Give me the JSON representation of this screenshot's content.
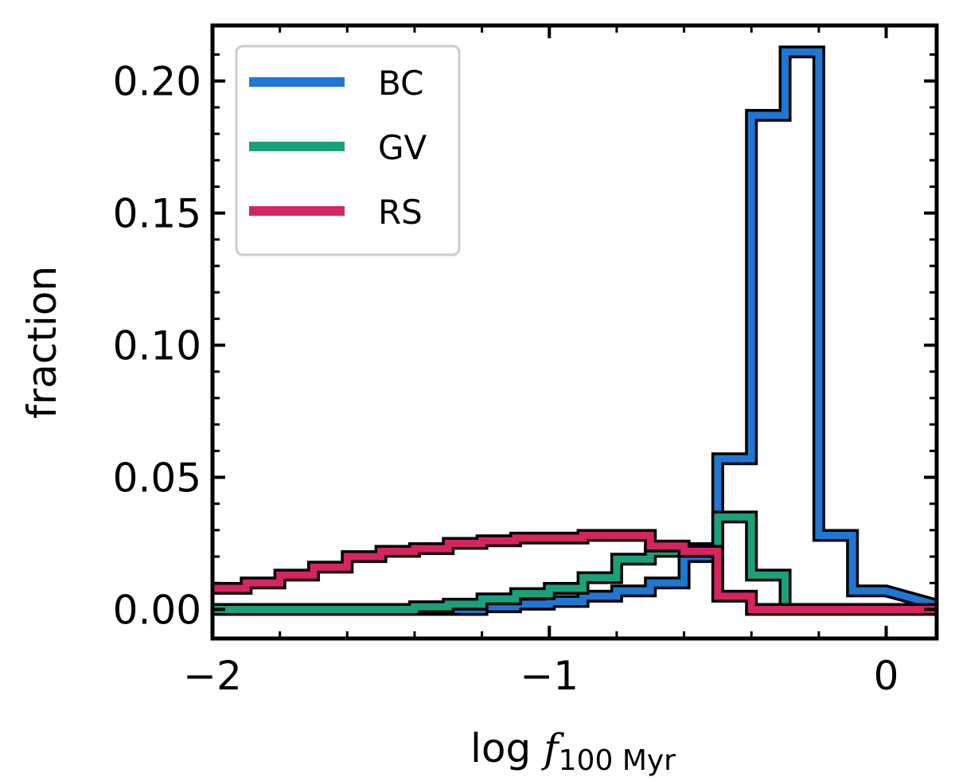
{
  "chart_data": {
    "type": "step-histogram",
    "title": "",
    "xlabel": {
      "prefix": "log ",
      "symbol": "f",
      "subscript": "100 Myr"
    },
    "ylabel": "fraction",
    "xlim": [
      -2.0,
      0.15
    ],
    "ylim": [
      -0.011,
      0.221
    ],
    "xticks": [
      -2,
      -1,
      0
    ],
    "xtick_labels": [
      "−2",
      "−1",
      "0"
    ],
    "yticks": [
      0.0,
      0.05,
      0.1,
      0.15,
      0.2
    ],
    "ytick_labels": [
      "0.00",
      "0.05",
      "0.10",
      "0.15",
      "0.20"
    ],
    "bin_edges": [
      -2.0,
      -1.9,
      -1.8,
      -1.7,
      -1.6,
      -1.5,
      -1.4,
      -1.3,
      -1.2,
      -1.1,
      -1.0,
      -0.9,
      -0.8,
      -0.7,
      -0.6,
      -0.5,
      -0.4,
      -0.3,
      -0.2,
      -0.1,
      0.0
    ],
    "legend_position": "upper-left",
    "series": [
      {
        "name": "BC",
        "color": "#1f77d4",
        "values": [
          0.0,
          0.0,
          0.0,
          0.0,
          0.0,
          0.0,
          0.0,
          0.0,
          0.001,
          0.002,
          0.003,
          0.005,
          0.007,
          0.01,
          0.02,
          0.057,
          0.187,
          0.211,
          0.028,
          0.007,
          0.0
        ]
      },
      {
        "name": "GV",
        "color": "#1aa07a",
        "values": [
          0.0,
          0.0,
          0.0,
          0.0,
          0.0,
          0.0,
          0.001,
          0.002,
          0.004,
          0.006,
          0.008,
          0.012,
          0.019,
          0.022,
          0.023,
          0.035,
          0.013,
          0.0,
          0.0,
          0.0,
          0.0
        ]
      },
      {
        "name": "RS",
        "color": "#d6245f",
        "values": [
          0.008,
          0.01,
          0.013,
          0.016,
          0.02,
          0.022,
          0.023,
          0.025,
          0.026,
          0.027,
          0.027,
          0.028,
          0.028,
          0.024,
          0.022,
          0.005,
          0.0,
          0.0,
          0.0,
          0.0,
          0.0
        ]
      }
    ]
  }
}
